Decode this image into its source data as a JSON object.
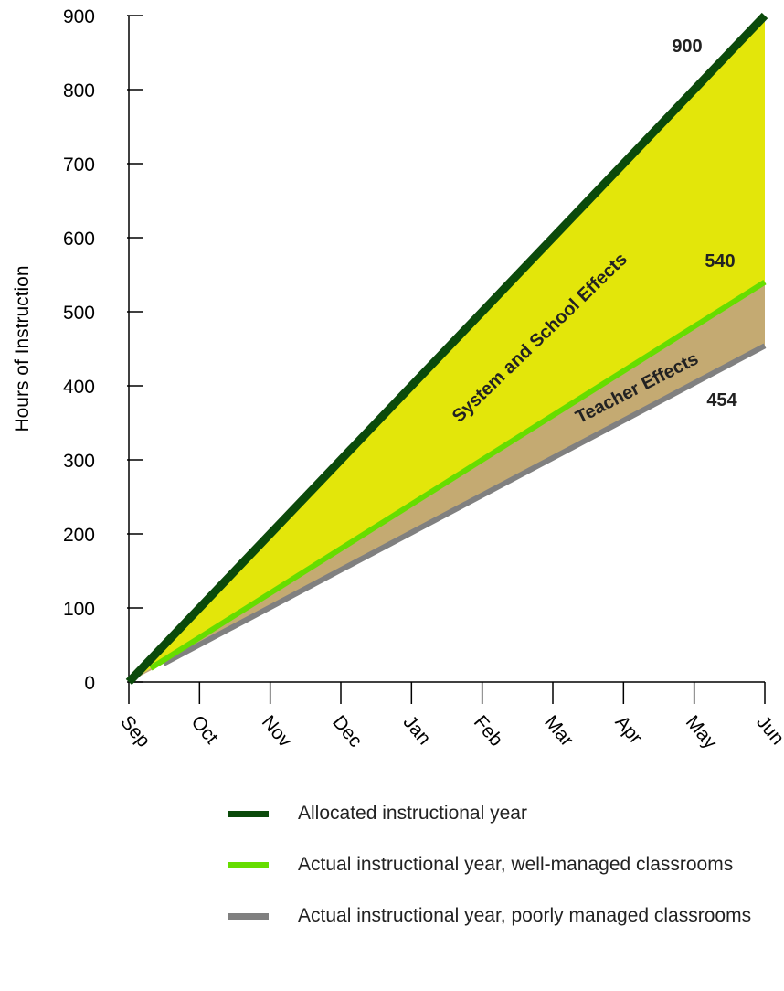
{
  "chart_data": {
    "type": "line",
    "ylabel": "Hours of Instruction",
    "xlabel": "",
    "ylim": [
      0,
      900
    ],
    "y_ticks": [
      0,
      100,
      200,
      300,
      400,
      500,
      600,
      700,
      800,
      900
    ],
    "categories": [
      "Sep",
      "Oct",
      "Nov",
      "Dec",
      "Jan",
      "Feb",
      "Mar",
      "Apr",
      "May",
      "Jun"
    ],
    "series": [
      {
        "name": "Allocated instructional year",
        "color": "#0b4a0b",
        "start": [
          "Sep",
          0
        ],
        "end": [
          "Jun",
          900
        ],
        "end_label": "900"
      },
      {
        "name": "Actual instructional year, well-managed classrooms",
        "color": "#66dd00",
        "start": [
          "Sep",
          0
        ],
        "end": [
          "Jun",
          540
        ],
        "end_label": "540"
      },
      {
        "name": "Actual instructional year, poorly managed classrooms",
        "color": "#808080",
        "start": [
          "Sep",
          0
        ],
        "end": [
          "Jun",
          454
        ],
        "end_label": "454"
      }
    ],
    "regions": [
      {
        "label": "System and School Effects",
        "color": "#e3e60a"
      },
      {
        "label": "Teacher Effects",
        "color": "#c4aa72"
      }
    ]
  }
}
